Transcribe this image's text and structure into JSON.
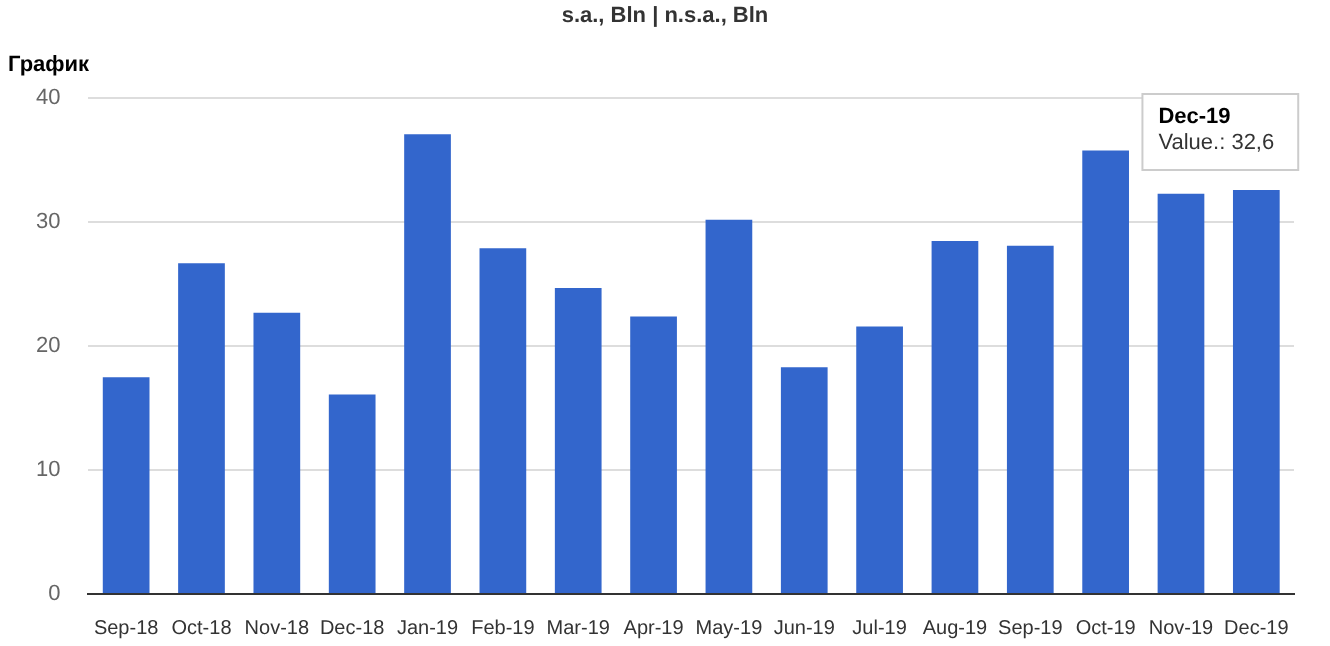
{
  "chart_data": {
    "type": "bar",
    "title": "График",
    "subtitle": "s.a., Bln | n.s.a., Bln",
    "categories": [
      "Sep-18",
      "Oct-18",
      "Nov-18",
      "Dec-18",
      "Jan-19",
      "Feb-19",
      "Mar-19",
      "Apr-19",
      "May-19",
      "Jun-19",
      "Jul-19",
      "Aug-19",
      "Sep-19",
      "Oct-19",
      "Nov-19",
      "Dec-19"
    ],
    "values": [
      17.5,
      26.7,
      22.7,
      16.1,
      37.1,
      27.9,
      24.7,
      22.4,
      30.2,
      18.3,
      21.6,
      28.5,
      28.1,
      35.8,
      32.3,
      32.6
    ],
    "color": "#3366cc",
    "ylim": [
      0,
      40
    ],
    "yticks": [
      0,
      10,
      20,
      30,
      40
    ],
    "grid": "y",
    "legend": false,
    "annotations": [
      {
        "text": "Dec-19\nValue.: 32,6",
        "x": "Dec-19",
        "y": 32.6
      }
    ]
  }
}
